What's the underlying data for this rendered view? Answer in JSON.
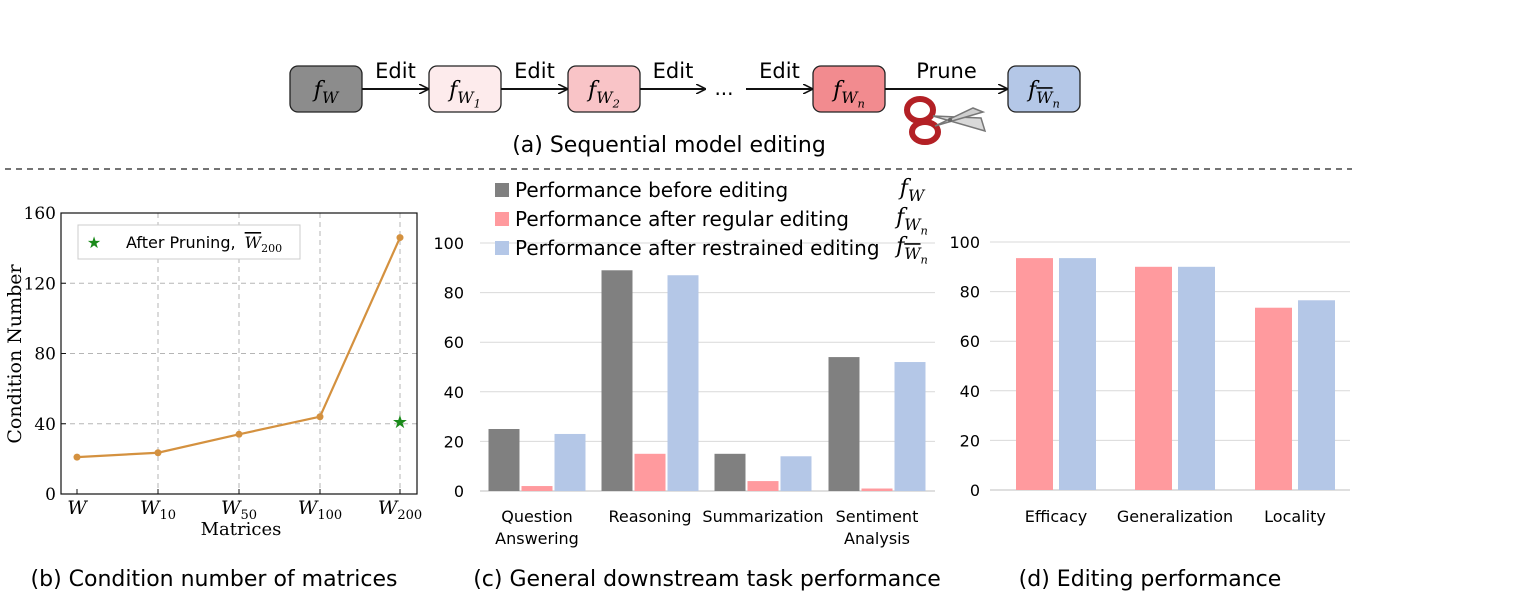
{
  "pipeline": {
    "nodes": [
      {
        "base": "f",
        "sub": "W",
        "sub2": "",
        "overline": false,
        "fill": "#8c8c8c"
      },
      {
        "base": "f",
        "sub": "W",
        "sub2": "1",
        "overline": false,
        "fill": "#fdebec"
      },
      {
        "base": "f",
        "sub": "W",
        "sub2": "2",
        "overline": false,
        "fill": "#f9c4c7"
      },
      {
        "base": "f",
        "sub": "W",
        "sub2": "n",
        "overline": false,
        "fill": "#f28b8f"
      },
      {
        "base": "f",
        "sub": "W",
        "sub2": "n",
        "overline": true,
        "fill": "#b4c7e7"
      }
    ],
    "arrow_labels": [
      "Edit",
      "Edit",
      "Edit",
      "Edit",
      "Prune"
    ],
    "ellipsis": "...",
    "caption": "(a) Sequential model editing"
  },
  "chart_b": {
    "caption": "(b) Condition number of matrices",
    "legend": {
      "label": "After Pruning,",
      "sym_base": "W",
      "sym_sub": "200"
    },
    "star_color": "#1a8a1a",
    "line_color": "#d4913f"
  },
  "chart_c": {
    "caption": "(c) General downstream task performance",
    "legend_symbols": [
      {
        "base": "f",
        "sub": "W",
        "sub2": "",
        "overline": false
      },
      {
        "base": "f",
        "sub": "W",
        "sub2": "n",
        "overline": false
      },
      {
        "base": "f",
        "sub": "W",
        "sub2": "n",
        "overline": true
      }
    ],
    "colors": [
      "#808080",
      "#ff9a9e",
      "#b4c7e7"
    ]
  },
  "chart_d": {
    "caption": "(d) Editing performance",
    "colors": [
      "#ff9a9e",
      "#b4c7e7"
    ]
  },
  "chart_data": [
    {
      "type": "line",
      "title": "",
      "xlabel": "Matrices",
      "ylabel": "Condition Number",
      "categories": [
        {
          "base": "W",
          "sub": ""
        },
        {
          "base": "W",
          "sub": "10"
        },
        {
          "base": "W",
          "sub": "50"
        },
        {
          "base": "W",
          "sub": "100"
        },
        {
          "base": "W",
          "sub": "200"
        }
      ],
      "series": [
        {
          "values": [
            21,
            23.5,
            34,
            44,
            146
          ]
        }
      ],
      "extra_point": {
        "name": "After Pruning",
        "x_index": 4,
        "y": 41
      },
      "ylim": [
        0,
        160
      ],
      "yticks": [
        0,
        40,
        80,
        120,
        160
      ],
      "grid": true,
      "legend_position": "top-left"
    },
    {
      "type": "bar",
      "title": "",
      "categories": [
        [
          "Question",
          "Answering"
        ],
        [
          "Reasoning"
        ],
        [
          "Summarization"
        ],
        [
          "Sentiment",
          "Analysis"
        ]
      ],
      "series": [
        {
          "name": "Performance before editing",
          "values": [
            25,
            89,
            15,
            54
          ]
        },
        {
          "name": "Performance after regular editing",
          "values": [
            2,
            15,
            4,
            1
          ]
        },
        {
          "name": "Performance after restrained editing",
          "values": [
            23,
            87,
            14,
            52
          ]
        }
      ],
      "ylim": [
        0,
        100
      ],
      "yticks": [
        0,
        20,
        40,
        60,
        80,
        100
      ],
      "grid": true,
      "legend_position": "top"
    },
    {
      "type": "bar",
      "title": "",
      "categories": [
        [
          "Efficacy"
        ],
        [
          "Generalization"
        ],
        [
          "Locality"
        ]
      ],
      "series": [
        {
          "values": [
            93.5,
            90,
            73.5
          ]
        },
        {
          "values": [
            93.5,
            90,
            76.5
          ]
        }
      ],
      "ylim": [
        0,
        100
      ],
      "yticks": [
        0,
        20,
        40,
        60,
        80,
        100
      ],
      "grid": true
    }
  ]
}
